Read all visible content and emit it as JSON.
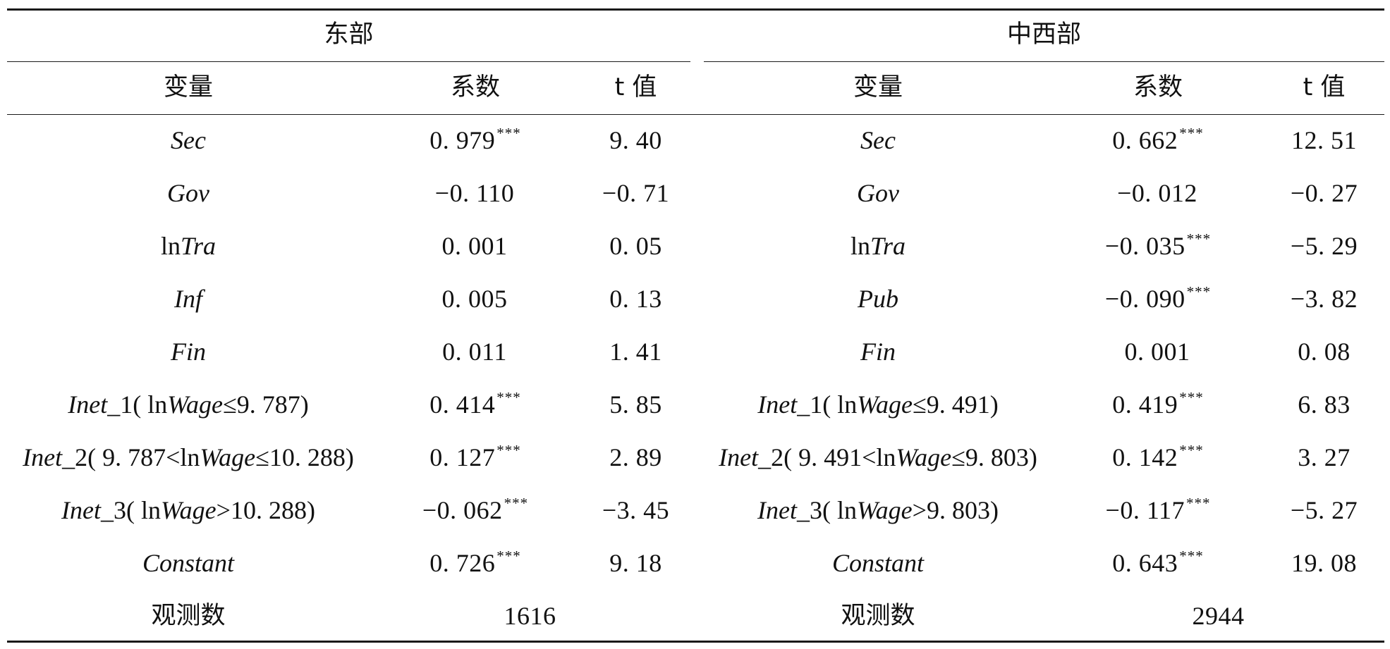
{
  "groups": {
    "east": "东部",
    "midwest": "中西部"
  },
  "headers": {
    "variable": "变量",
    "coef": "系数",
    "tval": "t 值"
  },
  "stars": "***",
  "east_rows": [
    {
      "var": "Sec",
      "coef": "0. 979",
      "stars": "***",
      "t": "9. 40"
    },
    {
      "var": "Gov",
      "coef": "−0. 110",
      "stars": "",
      "t": "−0. 71"
    },
    {
      "var": "lnTra",
      "coef": "0. 001",
      "stars": "",
      "t": "0. 05"
    },
    {
      "var": "Inf",
      "coef": "0. 005",
      "stars": "",
      "t": "0. 13"
    },
    {
      "var": "Fin",
      "coef": "0. 011",
      "stars": "",
      "t": "1. 41"
    },
    {
      "var": "Inet_1( lnWage≤9. 787)",
      "coef": "0. 414",
      "stars": "***",
      "t": "5. 85"
    },
    {
      "var": "Inet_2( 9. 787<lnWage≤10. 288)",
      "coef": "0. 127",
      "stars": "***",
      "t": "2. 89"
    },
    {
      "var": "Inet_3( lnWage>10. 288)",
      "coef": "−0. 062",
      "stars": "***",
      "t": "−3. 45"
    },
    {
      "var": "Constant",
      "coef": "0. 726",
      "stars": "***",
      "t": "9. 18"
    }
  ],
  "midwest_rows": [
    {
      "var": "Sec",
      "coef": "0. 662",
      "stars": "***",
      "t": "12. 51"
    },
    {
      "var": "Gov",
      "coef": "−0. 012",
      "stars": "",
      "t": "−0. 27"
    },
    {
      "var": "lnTra",
      "coef": "−0. 035",
      "stars": "***",
      "t": "−5. 29"
    },
    {
      "var": "Pub",
      "coef": "−0. 090",
      "stars": "***",
      "t": "−3. 82"
    },
    {
      "var": "Fin",
      "coef": "0. 001",
      "stars": "",
      "t": "0. 08"
    },
    {
      "var": "Inet_1( lnWage≤9. 491)",
      "coef": "0. 419",
      "stars": "***",
      "t": "6. 83"
    },
    {
      "var": "Inet_2( 9. 491<lnWage≤9. 803)",
      "coef": "0. 142",
      "stars": "***",
      "t": "3. 27"
    },
    {
      "var": "Inet_3( lnWage>9. 803)",
      "coef": "−0. 117",
      "stars": "***",
      "t": "−5. 27"
    },
    {
      "var": "Constant",
      "coef": "0. 643",
      "stars": "***",
      "t": "19. 08"
    }
  ],
  "observations": {
    "label": "观测数",
    "east": "1616",
    "midwest": "2944"
  }
}
